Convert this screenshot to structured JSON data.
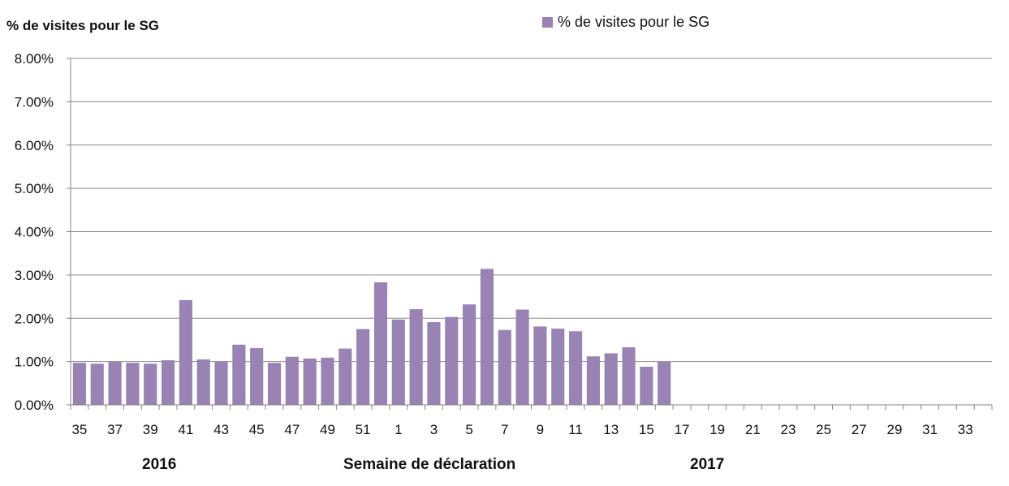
{
  "chart_data": {
    "type": "bar",
    "y_axis_title": "% de visites pour le SG",
    "legend_label": "% de visites pour le SG",
    "x_axis_title": "Semaine de déclaration",
    "year_labels": [
      "2016",
      "2017"
    ],
    "categories": [
      "35",
      "36",
      "37",
      "38",
      "39",
      "40",
      "41",
      "42",
      "43",
      "44",
      "45",
      "46",
      "47",
      "48",
      "49",
      "50",
      "51",
      "52",
      "1",
      "2",
      "3",
      "4",
      "5",
      "6",
      "7",
      "8",
      "9",
      "10",
      "11",
      "12",
      "13",
      "14",
      "15",
      "16",
      "17",
      "18",
      "19",
      "20",
      "21",
      "22",
      "23",
      "24",
      "25",
      "26",
      "27",
      "28",
      "29",
      "30",
      "31",
      "32",
      "33",
      "34"
    ],
    "tick_labels": [
      "35",
      "37",
      "39",
      "41",
      "43",
      "45",
      "47",
      "49",
      "51",
      "1",
      "3",
      "5",
      "7",
      "9",
      "11",
      "13",
      "15",
      "17",
      "19",
      "21",
      "23",
      "25",
      "27",
      "29",
      "31",
      "33"
    ],
    "values": [
      0.97,
      0.95,
      1.0,
      0.97,
      0.95,
      1.03,
      2.42,
      1.05,
      1.0,
      1.39,
      1.31,
      0.97,
      1.11,
      1.07,
      1.09,
      1.3,
      1.75,
      2.83,
      1.97,
      2.21,
      1.91,
      2.03,
      2.32,
      3.14,
      1.73,
      2.2,
      1.81,
      1.76,
      1.7,
      1.12,
      1.19,
      1.33,
      0.88,
      1.0,
      null,
      null,
      null,
      null,
      null,
      null,
      null,
      null,
      null,
      null,
      null,
      null,
      null,
      null,
      null,
      null,
      null,
      null
    ],
    "y_ticks": [
      "0.00%",
      "1.00%",
      "2.00%",
      "3.00%",
      "4.00%",
      "5.00%",
      "6.00%",
      "7.00%",
      "8.00%"
    ],
    "ylim": [
      0,
      8
    ],
    "gridlines": true,
    "legend_position": "top-right",
    "colors": {
      "bar": "#9983b5",
      "grid": "#8c8c8c",
      "axis": "#868686"
    }
  }
}
